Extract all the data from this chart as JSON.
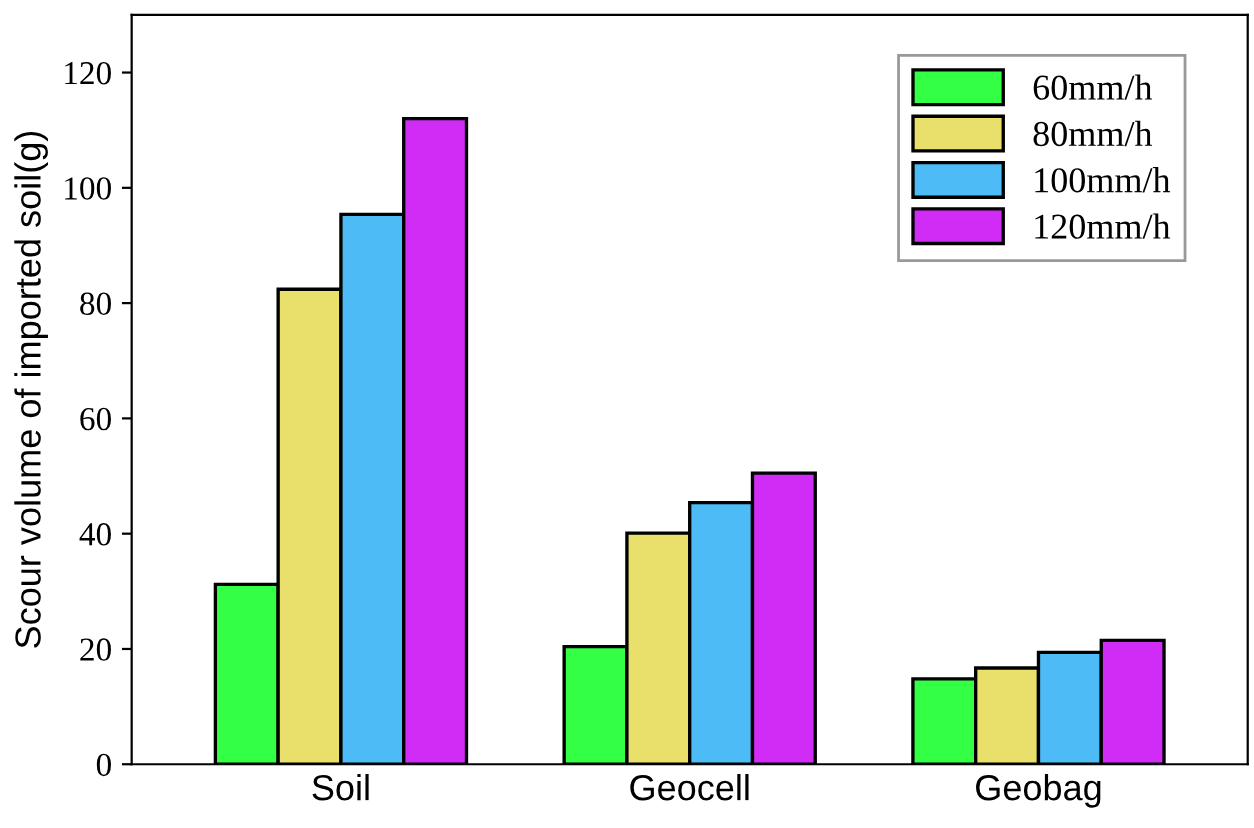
{
  "chart_data": {
    "type": "bar",
    "ylabel": "Scour volume of imported soil(g)",
    "categories": [
      "Soil",
      "Geocell",
      "Geobag"
    ],
    "series": [
      {
        "name": "60mm/h",
        "color": "#33ff44",
        "values": [
          31.2,
          20.4,
          14.8
        ]
      },
      {
        "name": "80mm/h",
        "color": "#e8e06a",
        "values": [
          82.4,
          40.1,
          16.7
        ]
      },
      {
        "name": "100mm/h",
        "color": "#4dbbf5",
        "values": [
          95.4,
          45.4,
          19.4
        ]
      },
      {
        "name": "120mm/h",
        "color": "#d02cf5",
        "values": [
          112,
          50.5,
          21.5
        ]
      }
    ],
    "ylim": [
      0,
      130
    ],
    "yticks": [
      0,
      20,
      40,
      60,
      80,
      100,
      120
    ],
    "grid": false,
    "legend": "top right"
  }
}
